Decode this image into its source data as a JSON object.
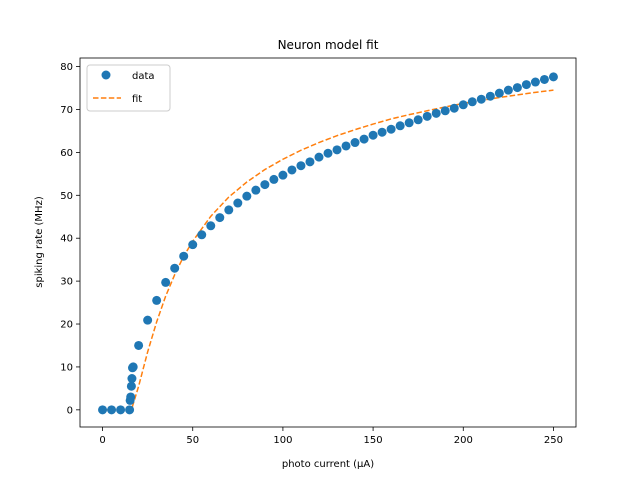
{
  "chart_data": {
    "type": "scatter",
    "title": "Neuron model fit",
    "xlabel": "photo current (μA)",
    "ylabel": "spiking rate (MHz)",
    "xlim": [
      -12.5,
      262.5
    ],
    "ylim": [
      -4,
      82
    ],
    "xticks": [
      0,
      50,
      100,
      150,
      200,
      250
    ],
    "yticks": [
      0,
      10,
      20,
      30,
      40,
      50,
      60,
      70,
      80
    ],
    "grid": false,
    "legend": {
      "position": "top-left",
      "entries": [
        "data",
        "fit"
      ]
    },
    "series": [
      {
        "name": "data",
        "style": "markers",
        "color": "#1f77b4",
        "x": [
          0,
          5,
          10,
          15,
          15.3,
          15.6,
          16,
          16.3,
          16.6,
          17,
          20,
          25,
          30,
          35,
          40,
          45,
          50,
          55,
          60,
          65,
          70,
          75,
          80,
          85,
          90,
          95,
          100,
          105,
          110,
          115,
          120,
          125,
          130,
          135,
          140,
          145,
          150,
          155,
          160,
          165,
          170,
          175,
          180,
          185,
          190,
          195,
          200,
          205,
          210,
          215,
          220,
          225,
          230,
          235,
          240,
          245,
          250
        ],
        "y": [
          0,
          0,
          0,
          0,
          2.2,
          3,
          5.5,
          7.3,
          9.8,
          10,
          15,
          20.9,
          25.5,
          29.7,
          33,
          35.8,
          38.5,
          40.8,
          42.9,
          44.8,
          46.6,
          48.2,
          49.8,
          51.2,
          52.5,
          53.7,
          54.7,
          55.9,
          56.9,
          57.8,
          58.9,
          59.8,
          60.6,
          61.5,
          62.3,
          63.1,
          64,
          64.7,
          65.4,
          66.2,
          66.9,
          67.6,
          68.4,
          69.1,
          69.7,
          70.3,
          71.1,
          71.8,
          72.4,
          73.1,
          73.8,
          74.5,
          75.1,
          75.8,
          76.4,
          77,
          77.6
        ]
      },
      {
        "name": "fit",
        "style": "dashed-line",
        "color": "#ff7f0e",
        "x": [
          0,
          5,
          10,
          15,
          16,
          20,
          25,
          30,
          35,
          40,
          45,
          50,
          60,
          70,
          80,
          90,
          100,
          110,
          120,
          130,
          140,
          150,
          160,
          170,
          180,
          190,
          200,
          210,
          220,
          230,
          240,
          250
        ],
        "y": [
          0,
          0,
          0,
          0,
          0,
          5.5,
          13.5,
          20.5,
          26.5,
          31.5,
          35.8,
          39.3,
          45.1,
          49.6,
          53.1,
          56,
          58.4,
          60.5,
          62.3,
          63.9,
          65.3,
          66.6,
          67.8,
          68.8,
          69.7,
          70.6,
          71.4,
          72.1,
          72.8,
          73.4,
          74,
          74.5
        ]
      }
    ]
  }
}
